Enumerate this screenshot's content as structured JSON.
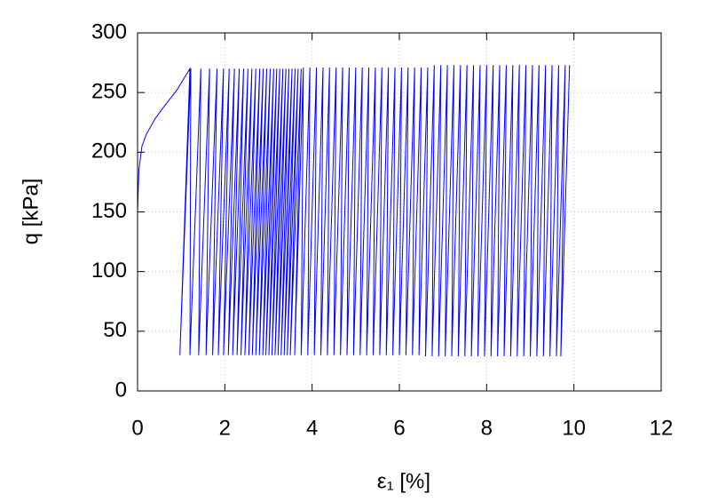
{
  "chart_data": {
    "type": "line",
    "xlabel": "ε₁ [%]",
    "ylabel": "q [kPa]",
    "xlim": [
      0,
      12
    ],
    "xticks": [
      0,
      2,
      4,
      6,
      8,
      10,
      12
    ],
    "ylim": [
      0,
      300
    ],
    "yticks": [
      0,
      50,
      100,
      150,
      200,
      250,
      300
    ],
    "grid": true,
    "series": [
      {
        "color": "#0000ff",
        "x": [
          0,
          0,
          0.03,
          0.1,
          0.2,
          0.4,
          0.6,
          0.9,
          1.2,
          0.97,
          1.22,
          1.2,
          1.45,
          1.4,
          1.65,
          1.57,
          1.82,
          1.72,
          1.97,
          1.85,
          2.1,
          1.97,
          2.22,
          2.08,
          2.33,
          2.18,
          2.43,
          2.28,
          2.53,
          2.37,
          2.62,
          2.46,
          2.71,
          2.55,
          2.8,
          2.63,
          2.88,
          2.71,
          2.96,
          2.79,
          3.04,
          2.87,
          3.12,
          2.94,
          3.19,
          3.01,
          3.26,
          3.08,
          3.33,
          3.15,
          3.4,
          3.22,
          3.47,
          3.29,
          3.54,
          3.36,
          3.61,
          3.43,
          3.68,
          3.5,
          3.75,
          3.6,
          3.8,
          3.75,
          3.95,
          3.9,
          4.1,
          4.05,
          4.25,
          4.2,
          4.4,
          4.35,
          4.55,
          4.5,
          4.7,
          4.65,
          4.85,
          4.8,
          5.0,
          4.95,
          5.15,
          5.1,
          5.3,
          5.25,
          5.45,
          5.4,
          5.6,
          5.55,
          5.75,
          5.7,
          5.9,
          5.85,
          6.05,
          6.0,
          6.2,
          6.15,
          6.35,
          6.3,
          6.5,
          6.45,
          6.65,
          6.6,
          6.8,
          6.75,
          6.95,
          6.9,
          7.1,
          7.05,
          7.25,
          7.2,
          7.4,
          7.35,
          7.55,
          7.5,
          7.7,
          7.65,
          7.85,
          7.8,
          8.0,
          7.95,
          8.15,
          8.1,
          8.3,
          8.25,
          8.45,
          8.4,
          8.6,
          8.55,
          8.75,
          8.7,
          8.9,
          8.85,
          9.05,
          9.0,
          9.2,
          9.15,
          9.35,
          9.3,
          9.5,
          9.45,
          9.65,
          9.6,
          9.8,
          9.7,
          9.9
        ],
        "values": [
          0,
          150,
          185,
          205,
          215,
          228,
          238,
          252,
          270,
          30,
          270,
          30,
          270,
          30,
          270,
          30,
          270,
          30,
          270,
          30,
          270,
          30,
          270,
          30,
          270,
          30,
          270,
          30,
          270,
          30,
          270,
          30,
          270,
          30,
          270,
          30,
          270,
          30,
          270,
          30,
          270,
          30,
          270,
          30,
          270,
          30,
          270,
          30,
          270,
          30,
          270,
          30,
          270,
          30,
          270,
          30,
          270,
          30,
          270,
          30,
          270,
          30,
          271,
          30,
          271,
          30,
          271,
          30,
          271,
          30,
          271,
          30,
          271,
          30,
          271,
          30,
          271,
          30,
          271,
          30,
          271,
          30,
          271,
          30,
          271,
          30,
          271,
          30,
          271,
          30,
          271,
          30,
          271,
          30,
          271,
          30,
          271,
          30,
          271,
          30,
          271,
          29,
          273,
          29,
          273,
          29,
          273,
          29,
          273,
          29,
          273,
          29,
          273,
          29,
          273,
          29,
          273,
          29,
          273,
          29,
          273,
          29,
          273,
          29,
          273,
          29,
          273,
          29,
          273,
          29,
          273,
          29,
          273,
          29,
          273,
          29,
          273,
          29,
          273,
          29,
          273,
          29,
          273,
          29,
          273
        ]
      }
    ]
  }
}
